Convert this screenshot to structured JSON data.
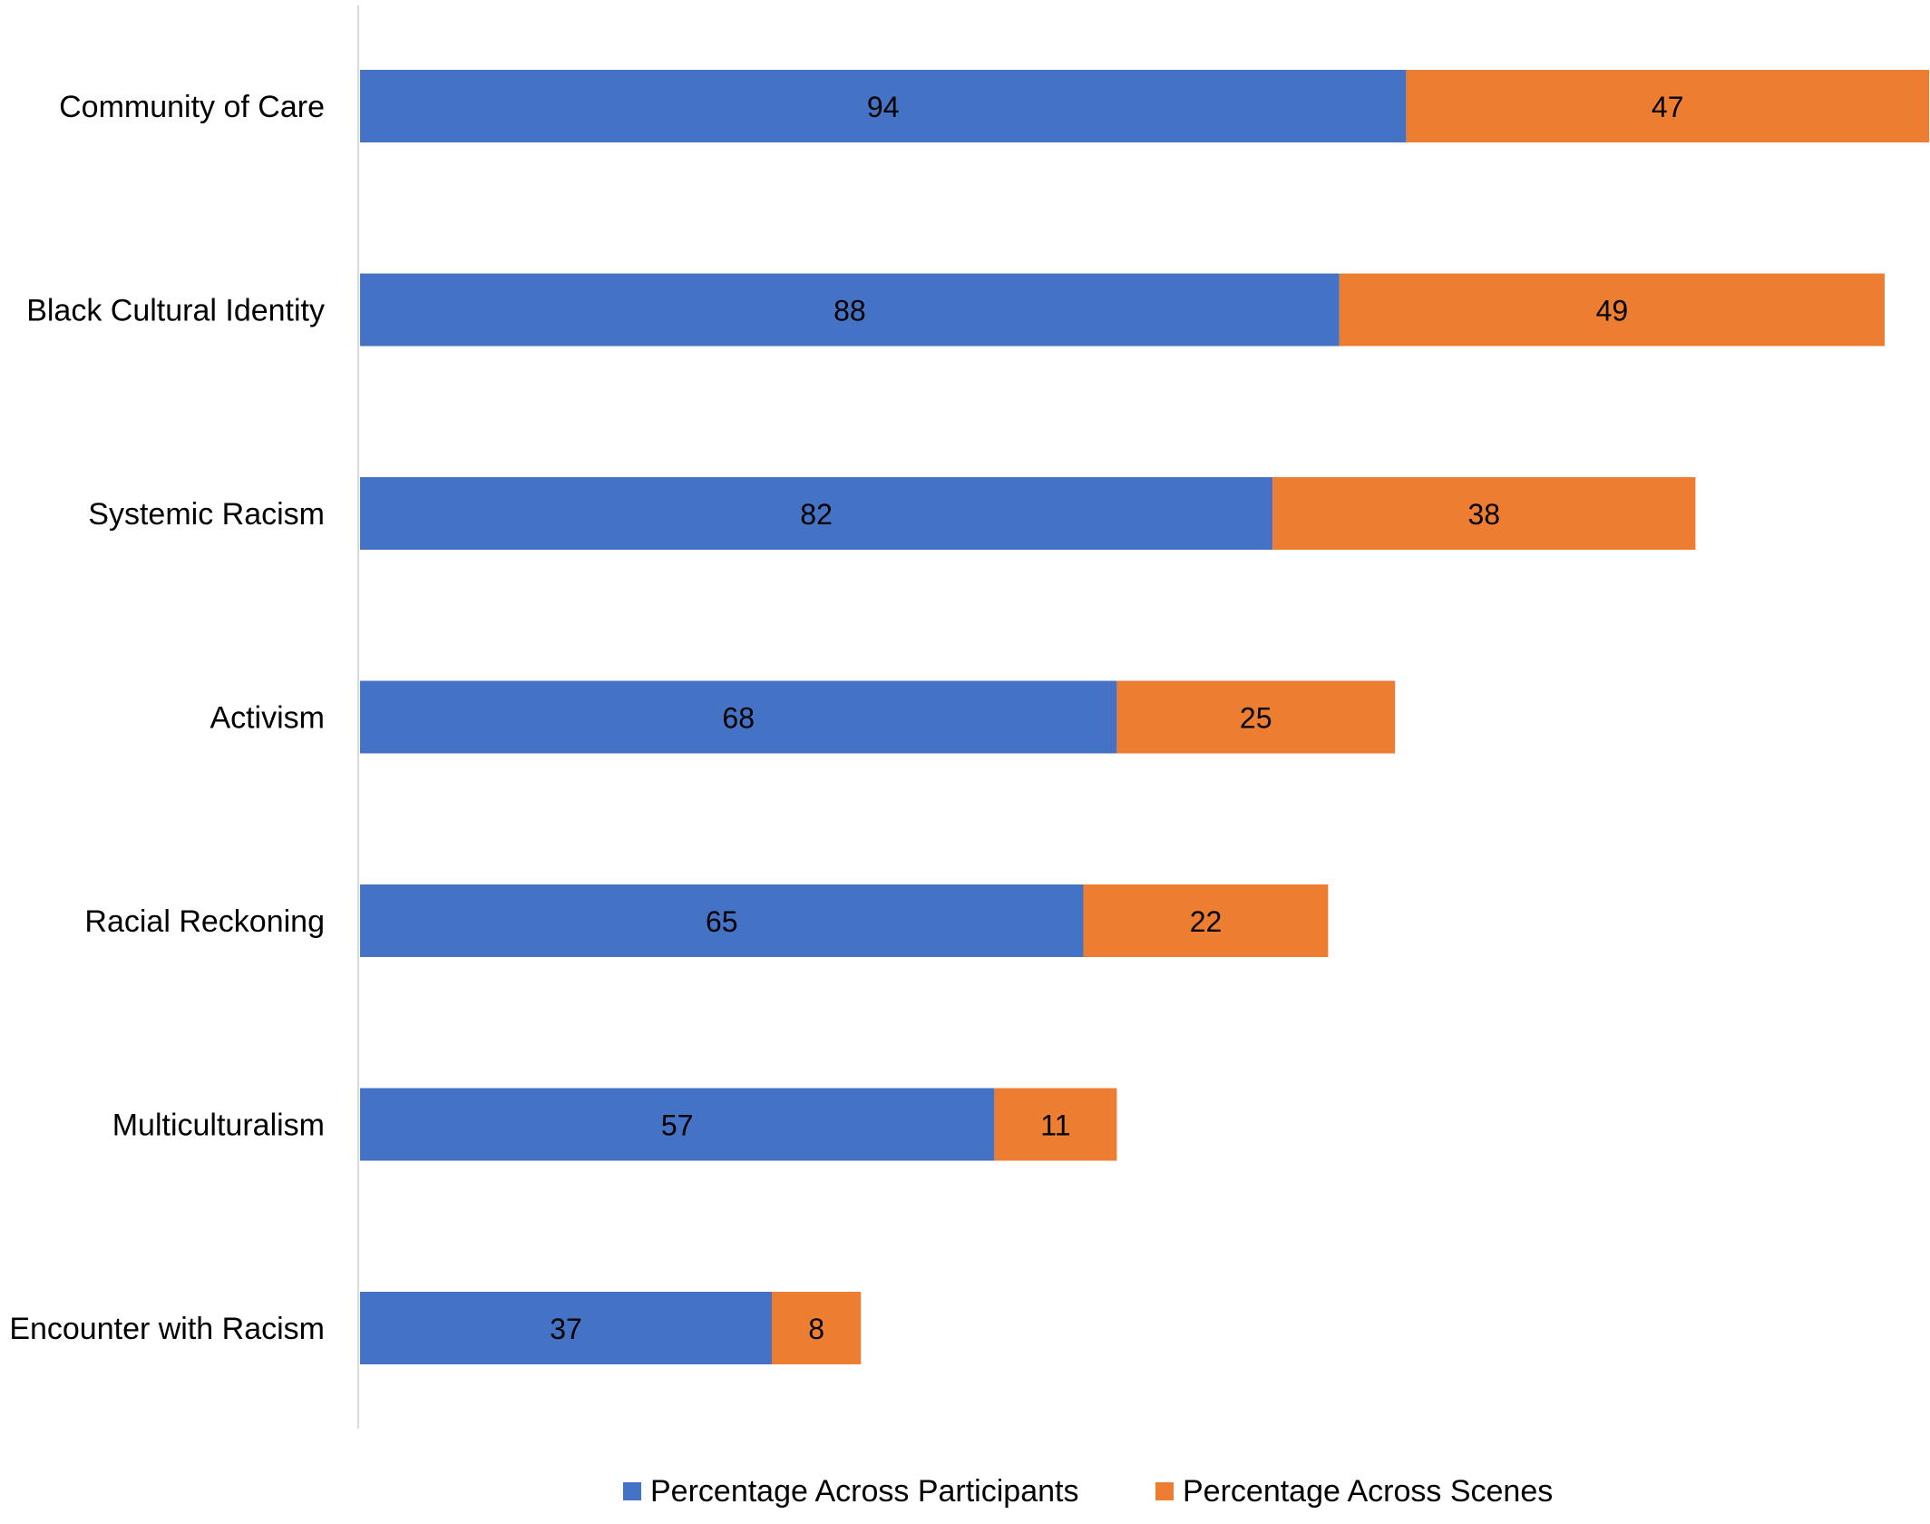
{
  "chart_data": {
    "type": "bar",
    "orientation": "horizontal",
    "stacked": true,
    "title": "",
    "xlabel": "",
    "ylabel": "",
    "categories": [
      "Community of Care",
      "Black Cultural Identity",
      "Systemic Racism",
      "Activism",
      "Racial Reckoning",
      "Multiculturalism",
      "Encounter with Racism"
    ],
    "series": [
      {
        "name": "Percentage Across Participants",
        "color": "#4472C4",
        "values": [
          94,
          88,
          82,
          68,
          65,
          57,
          37
        ]
      },
      {
        "name": "Percentage Across Scenes",
        "color": "#ED7D31",
        "values": [
          47,
          49,
          38,
          25,
          22,
          11,
          8
        ]
      }
    ],
    "xlim": [
      0,
      141
    ],
    "grid": false,
    "data_labels": true,
    "legend_position": "bottom",
    "axis_color": "#D9D9D9"
  }
}
